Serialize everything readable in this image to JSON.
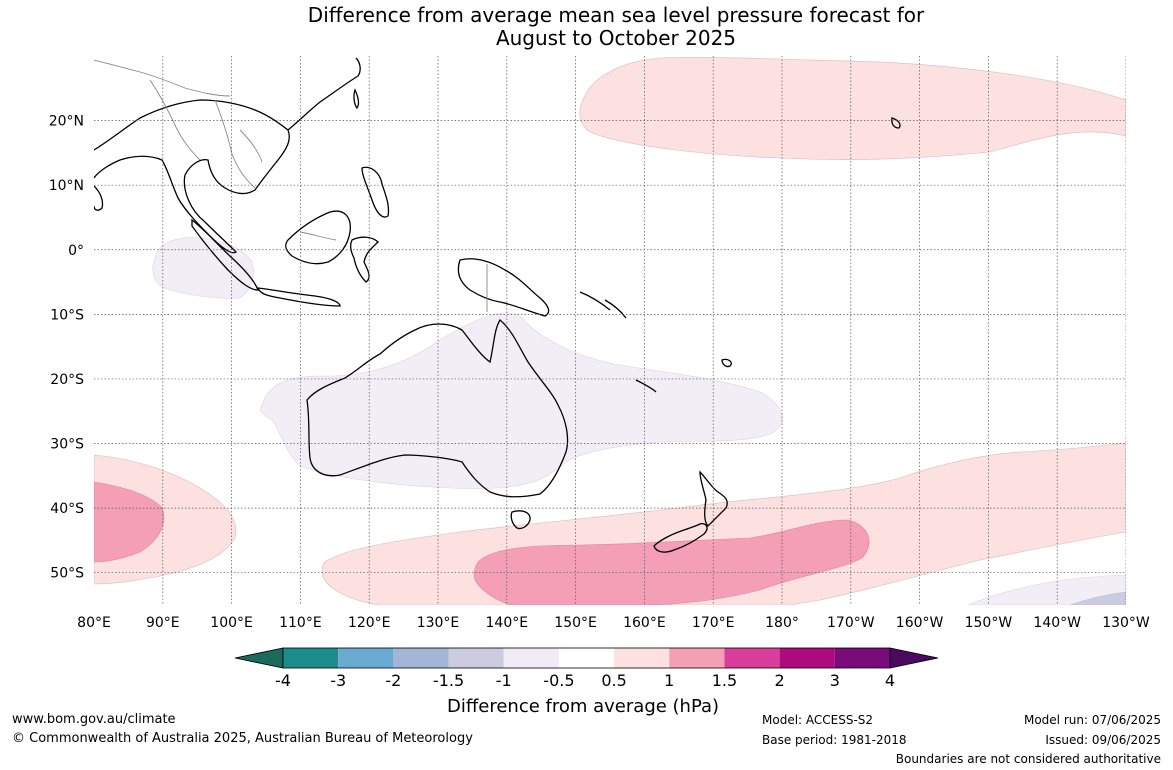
{
  "title": {
    "line1": "Difference from average mean sea level pressure forecast for",
    "line2": "August to October 2025"
  },
  "map": {
    "projection": "equirectangular",
    "lon_range": [
      80,
      230
    ],
    "lat_range": [
      -55,
      30
    ],
    "lat_ticks": [
      {
        "value": 20,
        "label": "20°N"
      },
      {
        "value": 10,
        "label": "10°N"
      },
      {
        "value": 0,
        "label": "0°"
      },
      {
        "value": -10,
        "label": "10°S"
      },
      {
        "value": -20,
        "label": "20°S"
      },
      {
        "value": -30,
        "label": "30°S"
      },
      {
        "value": -40,
        "label": "40°S"
      },
      {
        "value": -50,
        "label": "50°S"
      }
    ],
    "lon_ticks": [
      {
        "value": 80,
        "label": "80°E"
      },
      {
        "value": 90,
        "label": "90°E"
      },
      {
        "value": 100,
        "label": "100°E"
      },
      {
        "value": 110,
        "label": "110°E"
      },
      {
        "value": 120,
        "label": "120°E"
      },
      {
        "value": 130,
        "label": "130°E"
      },
      {
        "value": 140,
        "label": "140°E"
      },
      {
        "value": 150,
        "label": "150°E"
      },
      {
        "value": 160,
        "label": "160°E"
      },
      {
        "value": 170,
        "label": "170°E"
      },
      {
        "value": 180,
        "label": "180°"
      },
      {
        "value": 190,
        "label": "170°W"
      },
      {
        "value": 200,
        "label": "160°W"
      },
      {
        "value": 210,
        "label": "150°W"
      },
      {
        "value": 220,
        "label": "140°W"
      },
      {
        "value": 230,
        "label": "130°W"
      }
    ]
  },
  "colorbar": {
    "title": "Difference from average (hPa)",
    "tick_labels": [
      "-4",
      "-3",
      "-2",
      "-1.5",
      "-1",
      "-0.5",
      "0.5",
      "1",
      "1.5",
      "2",
      "3",
      "4"
    ],
    "colors": [
      "#1a6b5c",
      "#1c8c8c",
      "#6aaad0",
      "#a4b6d8",
      "#cccce0",
      "#f0ecf4",
      "#ffffff",
      "#fde0e0",
      "#f49fb6",
      "#d93e9a",
      "#ad0a7c",
      "#7a0b7a",
      "#4b0a60"
    ]
  },
  "footer": {
    "website": "www.bom.gov.au/climate",
    "copyright": "© Commonwealth of Australia 2025, Australian Bureau of Meteorology",
    "model": "Model: ACCESS-S2",
    "base_period": "Base period: 1981-2018",
    "model_run": "Model run: 07/06/2025",
    "issued": "Issued: 09/06/2025",
    "disclaimer": "Boundaries are not considered authoritative"
  }
}
